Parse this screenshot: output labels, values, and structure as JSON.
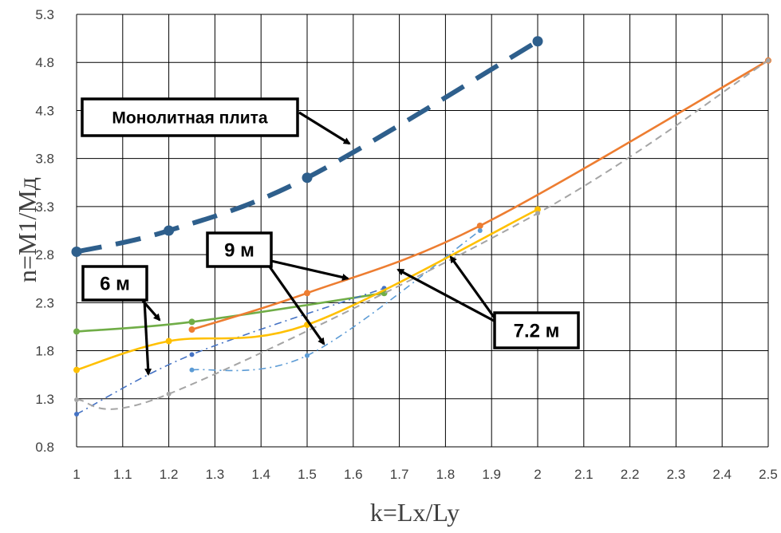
{
  "chart_data": {
    "type": "line",
    "xlabel": "k=Lx/Ly",
    "ylabel": "n=M1/Mд",
    "xlim": [
      1,
      2.5
    ],
    "ylim": [
      0.8,
      5.3
    ],
    "x_ticks": [
      "1",
      "1.1",
      "1.2",
      "1.3",
      "1.4",
      "1.5",
      "1.6",
      "1.7",
      "1.8",
      "1.9",
      "2",
      "2.1",
      "2.2",
      "2.3",
      "2.4",
      "2.5"
    ],
    "y_ticks": [
      "0.8",
      "1.3",
      "1.8",
      "2.3",
      "2.8",
      "3.3",
      "3.8",
      "4.3",
      "4.8",
      "5.3"
    ],
    "grid": true,
    "series": [
      {
        "color": "#2E5F8C",
        "style": "long-dash",
        "points": [
          [
            1,
            2.83
          ],
          [
            1.2,
            3.05
          ],
          [
            1.5,
            3.6
          ],
          [
            2,
            5.02
          ]
        ]
      },
      {
        "color": "#70AD47",
        "style": "solid",
        "points": [
          [
            1,
            2.0
          ],
          [
            1.25,
            2.1
          ],
          [
            1.667,
            2.4
          ]
        ]
      },
      {
        "color": "#4472C4",
        "style": "dash-dot",
        "points": [
          [
            1,
            1.14
          ],
          [
            1.25,
            1.76
          ],
          [
            1.667,
            2.45
          ]
        ]
      },
      {
        "color": "#ED7D31",
        "style": "solid",
        "points": [
          [
            1.25,
            2.02
          ],
          [
            1.5,
            2.4
          ],
          [
            1.875,
            3.1
          ],
          [
            2.5,
            4.82
          ]
        ]
      },
      {
        "color": "#5B9BD5",
        "style": "dash-dot",
        "points": [
          [
            1.25,
            1.6
          ],
          [
            1.5,
            1.75
          ],
          [
            1.875,
            3.05
          ]
        ]
      },
      {
        "color": "#FFC000",
        "style": "solid",
        "points": [
          [
            1,
            1.6
          ],
          [
            1.2,
            1.9
          ],
          [
            1.5,
            2.07
          ],
          [
            2,
            3.27
          ]
        ]
      },
      {
        "color": "#A5A5A5",
        "style": "dash",
        "points": [
          [
            1,
            1.29
          ],
          [
            1.2,
            1.35
          ],
          [
            2,
            3.23
          ],
          [
            2.5,
            4.82
          ]
        ]
      }
    ],
    "annotations": [
      {
        "text": "Монолитная плита"
      },
      {
        "text": "6 м"
      },
      {
        "text": "9 м"
      },
      {
        "text": "7.2 м"
      }
    ]
  }
}
